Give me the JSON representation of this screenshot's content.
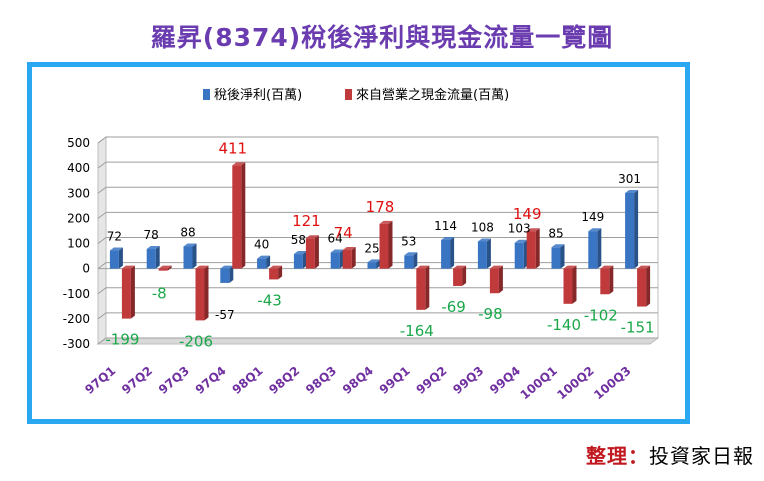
{
  "title": "羅昇(8374)稅後淨利與現金流量一覽圖",
  "credit": {
    "label": "整理：",
    "source": "投資家日報"
  },
  "colors": {
    "net_income": "#3a75c4",
    "cash_flow": "#c0393b",
    "pos_label": "#e01010",
    "neg_label": "#1ba84a",
    "tick": "#7030a0",
    "frame": "#29a7f0"
  },
  "chart_data": {
    "type": "bar",
    "title": "羅昇(8374)稅後淨利與現金流量一覽圖",
    "categories": [
      "97Q1",
      "97Q2",
      "97Q3",
      "97Q4",
      "98Q1",
      "98Q2",
      "98Q3",
      "98Q4",
      "99Q1",
      "99Q2",
      "99Q3",
      "99Q4",
      "100Q1",
      "100Q2",
      "100Q3"
    ],
    "series": [
      {
        "name": "稅後淨利(百萬)",
        "values": [
          72,
          78,
          88,
          -57,
          40,
          58,
          64,
          25,
          53,
          114,
          108,
          103,
          85,
          149,
          301
        ]
      },
      {
        "name": "來自營業之現金流量(百萬)",
        "values": [
          -199,
          -8,
          -206,
          411,
          -43,
          121,
          74,
          178,
          -164,
          -69,
          -98,
          149,
          -140,
          -102,
          -151
        ]
      }
    ],
    "ylim": [
      -300,
      500
    ],
    "yticks": [
      "500",
      "400",
      "300",
      "200",
      "100",
      "0",
      "-100",
      "-200",
      "-300"
    ],
    "grid": true,
    "legend": "top"
  }
}
